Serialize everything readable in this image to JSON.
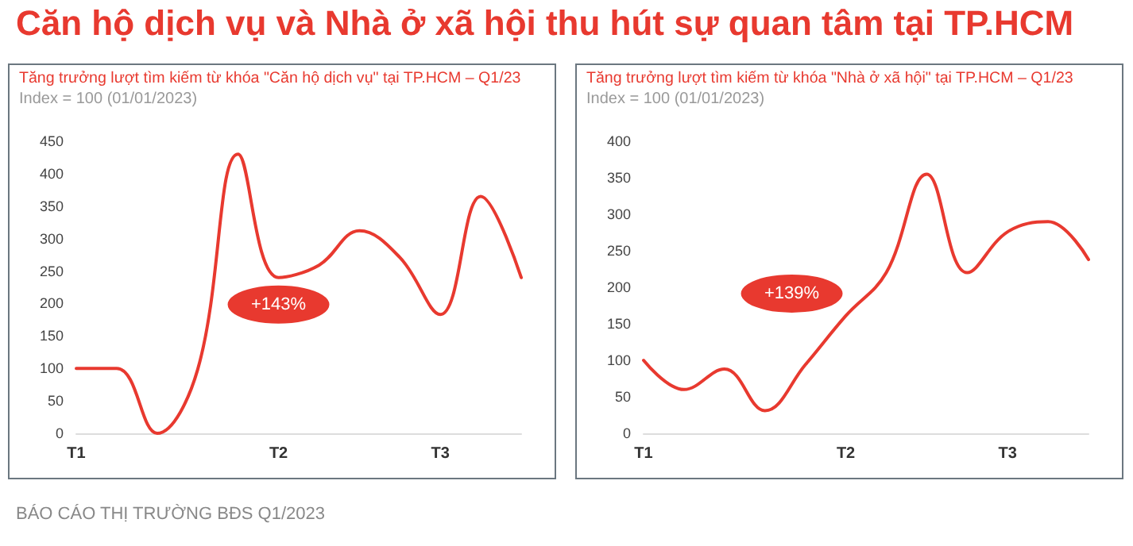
{
  "chart_data": [
    {
      "type": "line",
      "title": "Tăng trưởng lượt tìm kiếm từ khóa \"Căn hộ dịch vụ\" tại TP.HCM – Q1/23",
      "subtitle": "Index = 100 (01/01/2023)",
      "categories": [
        "T1",
        null,
        null,
        null,
        null,
        "T2",
        null,
        null,
        null,
        "T3",
        null,
        null
      ],
      "series": [
        {
          "color": "#e8392f",
          "values": [
            100,
            100,
            0,
            98,
            430,
            240,
            259,
            312,
            271,
            183,
            365,
            240
          ]
        }
      ],
      "ylim": [
        0,
        450
      ],
      "yticks": [
        0,
        50,
        100,
        150,
        200,
        250,
        300,
        350,
        400,
        450
      ],
      "grid": false,
      "marker": "none",
      "annotations": [
        "Căn hộ dịch vụ và Nhà ở xã hội thu hút sự quan tâm tại TP.HCM",
        {
          "text": "+143%",
          "x": "T2",
          "y": 240
        }
      ]
    },
    {
      "type": "line",
      "title": "Tăng trưởng lượt tìm kiếm từ khóa \"Nhà ở xã hội\" tại TP.HCM – Q1/23",
      "subtitle": "Index = 100 (01/01/2023)",
      "categories": [
        "T1",
        null,
        null,
        null,
        null,
        "T2",
        null,
        null,
        null,
        "T3",
        null,
        null
      ],
      "series": [
        {
          "color": "#e8392f",
          "values": [
            100,
            60,
            88,
            31,
            94,
            161,
            220,
            355,
            220,
            276,
            290,
            238
          ]
        }
      ],
      "ylim": [
        0,
        400
      ],
      "yticks": [
        0,
        50,
        100,
        150,
        200,
        250,
        300,
        350,
        400
      ],
      "grid": false,
      "marker": "none",
      "annotations": [
        {
          "text": "+139%",
          "x": "T2",
          "y": 161
        },
        "BÁO CÁO THỊ TRƯỜNG BĐS Q1/2023"
      ]
    }
  ]
}
